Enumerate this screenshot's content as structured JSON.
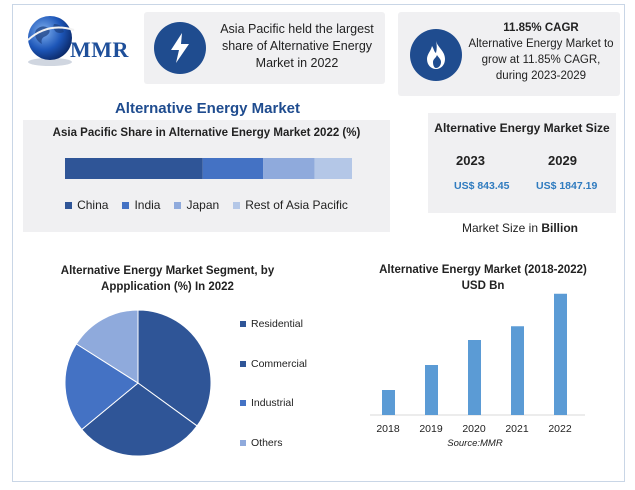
{
  "logo": {
    "text": "MMR",
    "icon": "globe-icon"
  },
  "cards": {
    "region": {
      "icon": "lightning-icon",
      "text": "Asia Pacific held the largest share of Alternative Energy Market in 2022"
    },
    "cagr": {
      "icon": "flame-icon",
      "headline": "11.85% CAGR",
      "text": "Alternative Energy Market to grow at 11.85% CAGR, during 2023-2029"
    }
  },
  "main_title": "Alternative Energy Market",
  "market_size": {
    "title": "Alternative Energy Market Size",
    "year1": "2023",
    "year2": "2029",
    "value1": "US$ 843.45",
    "value2": "US$ 1847.19",
    "unit_prefix": "Market Size in ",
    "unit_bold": "Billion"
  },
  "source": "Source:MMR",
  "colors": {
    "dark": "#2f5597",
    "mid": "#4472c4",
    "light": "#8faadc",
    "lighter": "#b4c7e7",
    "bar": "#5b9bd5",
    "title": "#1f4c8f",
    "value": "#2f7bbf"
  },
  "chart_data": [
    {
      "type": "bar",
      "orientation": "horizontal-stacked",
      "title": "Asia Pacific Share in Alternative Energy Market 2022 (%)",
      "categories": [
        "China",
        "India",
        "Japan",
        "Rest of Asia Pacific"
      ],
      "values": [
        48,
        21,
        18,
        13
      ],
      "colors": [
        "#2f5597",
        "#4472c4",
        "#8faadc",
        "#b4c7e7"
      ],
      "legend": "bottom"
    },
    {
      "type": "pie",
      "title": "Alternative Energy Market Segment, by Appplication (%) In 2022",
      "categories": [
        "Residential",
        "Commercial",
        "Industrial",
        "Others"
      ],
      "values": [
        35,
        29,
        20,
        16
      ],
      "colors": [
        "#2f5597",
        "#2f5597",
        "#4472c4",
        "#8faadc"
      ],
      "legend": "right"
    },
    {
      "type": "bar",
      "title": "Alternative Energy Market (2018-2022) USD Bn",
      "categories": [
        "2018",
        "2019",
        "2020",
        "2021",
        "2022"
      ],
      "values": [
        20,
        40,
        60,
        71,
        97
      ],
      "ylim": [
        0,
        100
      ],
      "color": "#5b9bd5",
      "grid": false
    }
  ]
}
